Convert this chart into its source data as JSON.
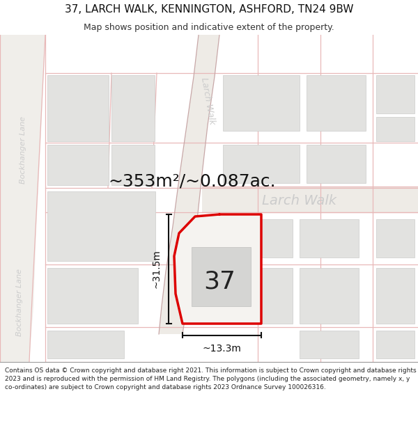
{
  "title": "37, LARCH WALK, KENNINGTON, ASHFORD, TN24 9BW",
  "subtitle": "Map shows position and indicative extent of the property.",
  "area_text": "~353m²/~0.087ac.",
  "number_label": "37",
  "dim_width": "~13.3m",
  "dim_height": "~31.5m",
  "road_label_h": "Larch Walk",
  "road_label_v": "Larch Walk",
  "left_road_label_top": "Bockhanger Lane",
  "left_road_label_bot": "Bockhanger Lane",
  "footer_text": "Contains OS data © Crown copyright and database right 2021. This information is subject to Crown copyright and database rights 2023 and is reproduced with the permission of HM Land Registry. The polygons (including the associated geometry, namely x, y co-ordinates) are subject to Crown copyright and database rights 2023 Ordnance Survey 100026316.",
  "bg_color": "#f7f6f2",
  "map_bg": "#ffffff",
  "road_color": "#e8b8b8",
  "road_fill": "#f5f0ee",
  "building_color": "#e2e2e0",
  "building_edge": "#ccccca",
  "plot_outline_color": "#dd0000",
  "plot_fill": "#f5f3f0",
  "dim_color": "#111111",
  "footer_bg": "#ffffff",
  "title_fontsize": 11,
  "subtitle_fontsize": 9,
  "area_fontsize": 18,
  "label_fontsize": 14,
  "dim_fontsize": 10,
  "road_label_color": "#bbbbbb",
  "road_lw": 0.9,
  "plot_lw": 2.5
}
